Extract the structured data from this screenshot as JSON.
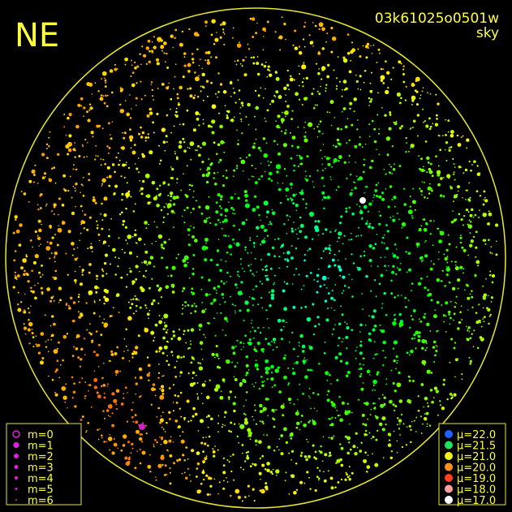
{
  "header": {
    "direction": "NE",
    "frame_id": "03k61025o0501w",
    "mode": "sky"
  },
  "magnitude_legend": [
    "m=0",
    "m=1",
    "m=2",
    "m=3",
    "m=4",
    "m=5",
    "m=6"
  ],
  "brightness_legend": [
    "μ=22.0",
    "μ=21.5",
    "μ=21.0",
    "μ=20.0",
    "μ=19.0",
    "μ=18.0",
    "μ=17.0"
  ]
}
